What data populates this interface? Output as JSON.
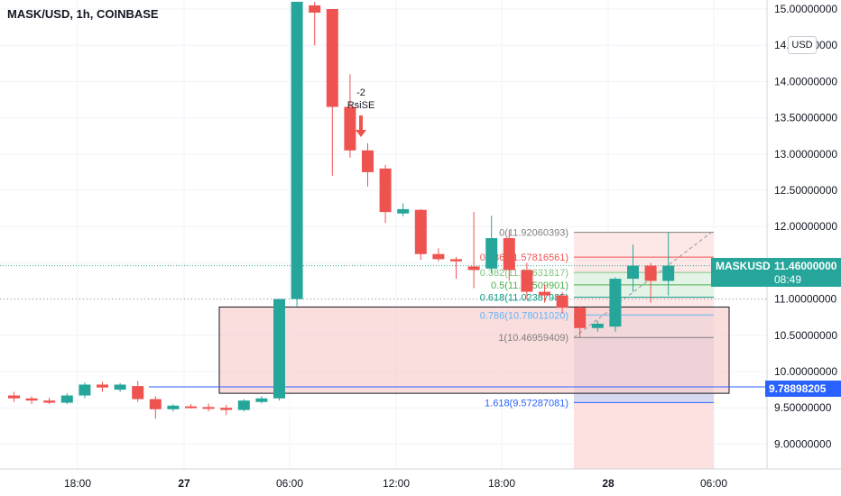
{
  "header": {
    "title": "MASK/USD, 1h, COINBASE",
    "unit_badge": "USD"
  },
  "colors": {
    "up": "#26a69a",
    "down": "#ef5350",
    "rect_fill": "#f8cfcf",
    "hline": "#2962ff",
    "grid": "#f0f3fa",
    "projection": "#aebae8"
  },
  "price_label": {
    "symbol": "MASKUSD",
    "value": "11.46000000",
    "countdown": "08:49"
  },
  "hline_label": {
    "value": "9.78898205"
  },
  "signal": {
    "line1": "-2",
    "line2": "RsiSE"
  },
  "chart_data": {
    "type": "candlestick",
    "title": "MASK/USD, 1h, COINBASE",
    "ylim": [
      8.6,
      15.0
    ],
    "y_ticks": [
      15.0,
      14.5,
      14.0,
      13.5,
      13.0,
      12.5,
      12.0,
      11.5,
      11.0,
      10.5,
      10.0,
      9.5,
      9.0
    ],
    "y_tick_labels": [
      "15.00000000",
      "14.50000000",
      "14.00000000",
      "13.50000000",
      "13.00000000",
      "12.50000000",
      "12.00000000",
      "11.50000000",
      "11.00000000",
      "10.50000000",
      "10.00000000",
      "9.50000000",
      "9.00000000"
    ],
    "x_ticks": [
      "18:00",
      "27",
      "06:00",
      "12:00",
      "18:00",
      "28",
      "06:00"
    ],
    "candles": [
      {
        "o": 9.67,
        "h": 9.72,
        "l": 9.58,
        "c": 9.63
      },
      {
        "o": 9.63,
        "h": 9.66,
        "l": 9.55,
        "c": 9.6
      },
      {
        "o": 9.6,
        "h": 9.64,
        "l": 9.55,
        "c": 9.57
      },
      {
        "o": 9.57,
        "h": 9.7,
        "l": 9.55,
        "c": 9.67
      },
      {
        "o": 9.67,
        "h": 9.85,
        "l": 9.63,
        "c": 9.82
      },
      {
        "o": 9.82,
        "h": 9.86,
        "l": 9.72,
        "c": 9.78
      },
      {
        "o": 9.75,
        "h": 9.84,
        "l": 9.72,
        "c": 9.82
      },
      {
        "o": 9.8,
        "h": 9.87,
        "l": 9.58,
        "c": 9.62
      },
      {
        "o": 9.62,
        "h": 9.66,
        "l": 9.35,
        "c": 9.48
      },
      {
        "o": 9.48,
        "h": 9.55,
        "l": 9.45,
        "c": 9.53
      },
      {
        "o": 9.52,
        "h": 9.55,
        "l": 9.49,
        "c": 9.51
      },
      {
        "o": 9.51,
        "h": 9.56,
        "l": 9.45,
        "c": 9.5
      },
      {
        "o": 9.5,
        "h": 9.54,
        "l": 9.4,
        "c": 9.47
      },
      {
        "o": 9.47,
        "h": 9.62,
        "l": 9.45,
        "c": 9.6
      },
      {
        "o": 9.58,
        "h": 9.66,
        "l": 9.56,
        "c": 9.63
      },
      {
        "o": 9.63,
        "h": 11.0,
        "l": 9.6,
        "c": 11.0
      },
      {
        "o": 11.0,
        "h": 15.1,
        "l": 10.9,
        "c": 15.1
      },
      {
        "o": 15.05,
        "h": 15.1,
        "l": 14.5,
        "c": 14.95
      },
      {
        "o": 15.0,
        "h": 15.0,
        "l": 12.7,
        "c": 13.65
      },
      {
        "o": 13.65,
        "h": 14.1,
        "l": 12.95,
        "c": 13.05
      },
      {
        "o": 13.05,
        "h": 13.15,
        "l": 12.55,
        "c": 12.75
      },
      {
        "o": 12.8,
        "h": 12.85,
        "l": 12.05,
        "c": 12.2
      },
      {
        "o": 12.18,
        "h": 12.32,
        "l": 12.14,
        "c": 12.24
      },
      {
        "o": 12.23,
        "h": 12.24,
        "l": 11.54,
        "c": 11.62
      },
      {
        "o": 11.62,
        "h": 11.7,
        "l": 11.52,
        "c": 11.55
      },
      {
        "o": 11.55,
        "h": 11.58,
        "l": 11.28,
        "c": 11.52
      },
      {
        "o": 11.45,
        "h": 12.2,
        "l": 11.15,
        "c": 11.4
      },
      {
        "o": 11.42,
        "h": 12.15,
        "l": 11.35,
        "c": 11.84
      },
      {
        "o": 11.84,
        "h": 11.95,
        "l": 11.25,
        "c": 11.4
      },
      {
        "o": 11.4,
        "h": 11.5,
        "l": 11.0,
        "c": 11.1
      },
      {
        "o": 11.1,
        "h": 11.2,
        "l": 10.95,
        "c": 11.05
      },
      {
        "o": 11.05,
        "h": 11.1,
        "l": 10.8,
        "c": 10.88
      },
      {
        "o": 10.88,
        "h": 10.9,
        "l": 10.47,
        "c": 10.6
      },
      {
        "o": 10.6,
        "h": 10.7,
        "l": 10.55,
        "c": 10.66
      },
      {
        "o": 10.62,
        "h": 11.3,
        "l": 10.55,
        "c": 11.28
      },
      {
        "o": 11.28,
        "h": 11.75,
        "l": 11.1,
        "c": 11.46
      },
      {
        "o": 11.46,
        "h": 11.5,
        "l": 10.95,
        "c": 11.25
      },
      {
        "o": 11.25,
        "h": 11.92,
        "l": 11.05,
        "c": 11.46
      }
    ],
    "fib_levels": [
      {
        "label": "0(11.92060393)",
        "value": 11.92060393,
        "color": "#808080"
      },
      {
        "label": "0.236(11.57816561)",
        "value": 11.57816561,
        "color": "#ef5350"
      },
      {
        "label": "0.382(11.36631817)",
        "value": 11.36631817,
        "color": "#81c784"
      },
      {
        "label": "0.5(11.19509901)",
        "value": 11.19509901,
        "color": "#4caf50"
      },
      {
        "label": "0.618(11.02387985)",
        "value": 11.02387985,
        "color": "#089981"
      },
      {
        "label": "0.786(10.78011020)",
        "value": 10.7801102,
        "color": "#64b5f6"
      },
      {
        "label": "1(10.46959409)",
        "value": 10.46959409,
        "color": "#808080"
      },
      {
        "label": "1.618(9.57287081)",
        "value": 9.57287081,
        "color": "#2962ff"
      }
    ],
    "zone": {
      "top": 10.89,
      "bottom": 9.7
    },
    "horizontal_line": 9.78898205,
    "current_price": 11.46
  }
}
